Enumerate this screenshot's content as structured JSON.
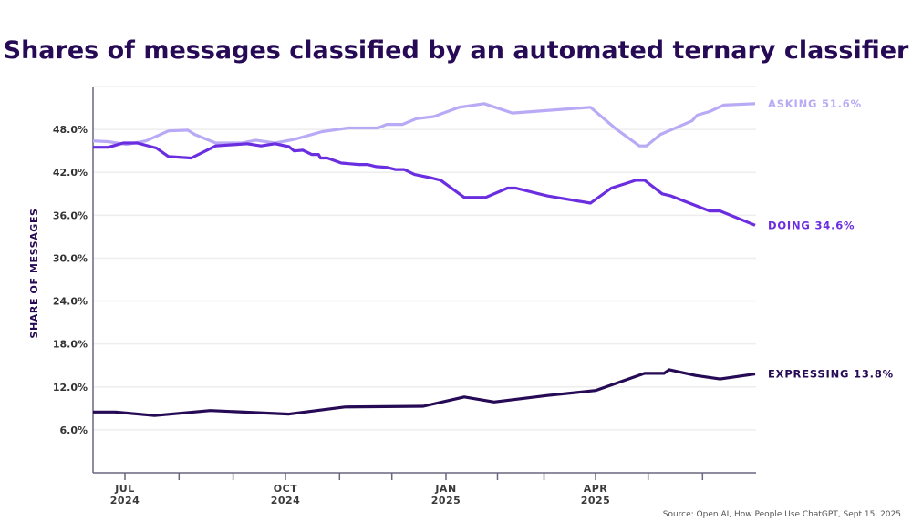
{
  "chart_data": {
    "type": "line",
    "title": "Shares of messages classified by an automated ternary classifier",
    "ylabel": "SHARE OF MESSAGES",
    "xlabel": "",
    "ylim": [
      0,
      54
    ],
    "xlim": [
      "2024-06-12",
      "2025-07-01"
    ],
    "grid": true,
    "y_ticks": [
      6,
      12,
      18,
      24,
      30,
      36,
      42,
      48
    ],
    "y_tick_labels": [
      "6.0%",
      "12.0%",
      "18.0%",
      "24.0%",
      "30.0%",
      "36.0%",
      "42.0%",
      "48.0%"
    ],
    "x_ticks": [
      {
        "date": "2024-07-01",
        "month": "JUL",
        "year": "2024"
      },
      {
        "date": "2024-10-01",
        "month": "OCT",
        "year": "2024"
      },
      {
        "date": "2025-01-01",
        "month": "JAN",
        "year": "2025"
      },
      {
        "date": "2025-04-01",
        "month": "APR",
        "year": "2025"
      }
    ],
    "series": [
      {
        "name": "ASKING",
        "end_label": "ASKING 51.6%",
        "color": "#b9aaf5",
        "points": [
          [
            "2024-06-12",
            46.4
          ],
          [
            "2024-06-21",
            46.3
          ],
          [
            "2024-07-02",
            45.9
          ],
          [
            "2024-07-13",
            46.4
          ],
          [
            "2024-07-26",
            47.8
          ],
          [
            "2024-08-06",
            47.9
          ],
          [
            "2024-08-10",
            47.3
          ],
          [
            "2024-08-22",
            46.1
          ],
          [
            "2024-09-06",
            46.1
          ],
          [
            "2024-09-14",
            46.5
          ],
          [
            "2024-09-25",
            46.1
          ],
          [
            "2024-10-06",
            46.6
          ],
          [
            "2024-10-22",
            47.7
          ],
          [
            "2024-11-06",
            48.2
          ],
          [
            "2024-11-23",
            48.2
          ],
          [
            "2024-11-28",
            48.7
          ],
          [
            "2024-12-07",
            48.7
          ],
          [
            "2024-12-15",
            49.5
          ],
          [
            "2024-12-25",
            49.8
          ],
          [
            "2025-01-09",
            51.1
          ],
          [
            "2025-01-24",
            51.6
          ],
          [
            "2025-02-10",
            50.3
          ],
          [
            "2025-03-29",
            51.1
          ],
          [
            "2025-04-13",
            48.0
          ],
          [
            "2025-04-26",
            45.7
          ],
          [
            "2025-04-30",
            45.7
          ],
          [
            "2025-05-08",
            47.3
          ],
          [
            "2025-05-26",
            49.2
          ],
          [
            "2025-05-29",
            50.0
          ],
          [
            "2025-06-05",
            50.5
          ],
          [
            "2025-06-13",
            51.4
          ],
          [
            "2025-07-01",
            51.6
          ]
        ]
      },
      {
        "name": "DOING",
        "end_label": "DOING 34.6%",
        "color": "#6a2ee0",
        "points": [
          [
            "2024-06-12",
            45.5
          ],
          [
            "2024-06-21",
            45.5
          ],
          [
            "2024-06-30",
            46.1
          ],
          [
            "2024-07-08",
            46.1
          ],
          [
            "2024-07-19",
            45.4
          ],
          [
            "2024-07-26",
            44.2
          ],
          [
            "2024-08-08",
            44.0
          ],
          [
            "2024-08-22",
            45.7
          ],
          [
            "2024-09-09",
            46.0
          ],
          [
            "2024-09-17",
            45.7
          ],
          [
            "2024-09-25",
            46.0
          ],
          [
            "2024-10-03",
            45.6
          ],
          [
            "2024-10-06",
            45.0
          ],
          [
            "2024-10-11",
            45.1
          ],
          [
            "2024-10-16",
            44.5
          ],
          [
            "2024-10-20",
            44.5
          ],
          [
            "2024-10-21",
            44.0
          ],
          [
            "2024-10-25",
            44.0
          ],
          [
            "2024-11-02",
            43.3
          ],
          [
            "2024-11-12",
            43.1
          ],
          [
            "2024-11-17",
            43.1
          ],
          [
            "2024-11-22",
            42.8
          ],
          [
            "2024-11-28",
            42.7
          ],
          [
            "2024-12-03",
            42.4
          ],
          [
            "2024-12-08",
            42.4
          ],
          [
            "2024-12-14",
            41.7
          ],
          [
            "2024-12-24",
            41.2
          ],
          [
            "2024-12-29",
            40.9
          ],
          [
            "2025-01-12",
            38.5
          ],
          [
            "2025-01-25",
            38.5
          ],
          [
            "2025-02-07",
            39.8
          ],
          [
            "2025-02-12",
            39.8
          ],
          [
            "2025-02-26",
            39.0
          ],
          [
            "2025-03-03",
            38.7
          ],
          [
            "2025-03-29",
            37.7
          ],
          [
            "2025-04-10",
            39.8
          ],
          [
            "2025-04-19",
            40.5
          ],
          [
            "2025-04-24",
            40.9
          ],
          [
            "2025-04-29",
            40.9
          ],
          [
            "2025-05-09",
            39.0
          ],
          [
            "2025-05-14",
            38.7
          ],
          [
            "2025-06-05",
            36.6
          ],
          [
            "2025-06-11",
            36.6
          ],
          [
            "2025-07-01",
            34.6
          ]
        ]
      },
      {
        "name": "EXPRESSING",
        "end_label": "EXPRESSING 13.8%",
        "color": "#260a55",
        "points": [
          [
            "2024-06-12",
            8.5
          ],
          [
            "2024-06-25",
            8.5
          ],
          [
            "2024-07-18",
            8.0
          ],
          [
            "2024-08-19",
            8.7
          ],
          [
            "2024-10-03",
            8.2
          ],
          [
            "2024-11-04",
            9.2
          ],
          [
            "2024-12-19",
            9.3
          ],
          [
            "2025-01-12",
            10.6
          ],
          [
            "2025-01-30",
            9.9
          ],
          [
            "2025-03-03",
            10.8
          ],
          [
            "2025-04-01",
            11.5
          ],
          [
            "2025-04-29",
            13.9
          ],
          [
            "2025-05-10",
            13.9
          ],
          [
            "2025-05-13",
            14.4
          ],
          [
            "2025-05-28",
            13.6
          ],
          [
            "2025-06-11",
            13.1
          ],
          [
            "2025-07-01",
            13.8
          ]
        ]
      }
    ],
    "source": "Source: Open AI, How People Use ChatGPT, Sept 15, 2025"
  }
}
